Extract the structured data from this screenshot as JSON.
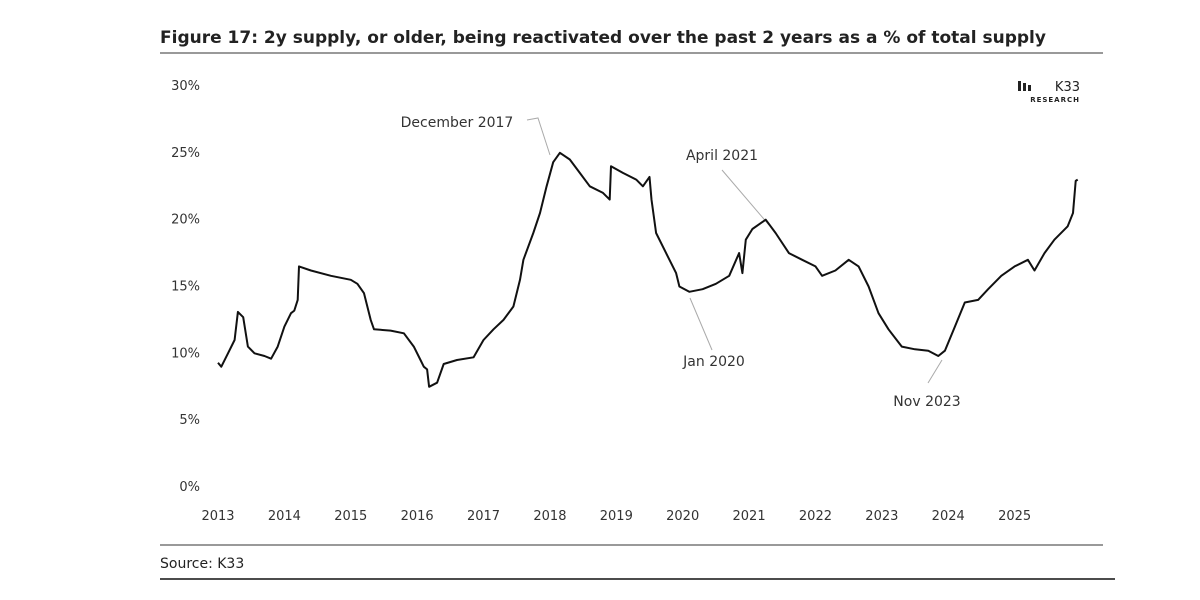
{
  "chart_data": {
    "type": "line",
    "title": "Figure 17: 2y supply, or older, being reactivated over the past 2 years as a % of total supply",
    "source": "Source: K33",
    "logo": {
      "name": "K33",
      "sub": "RESEARCH"
    },
    "annotations": [
      "December 2017",
      "April 2021",
      "Jan 2020",
      "Nov 2023"
    ],
    "xlim": [
      2013,
      2026
    ],
    "xticks": [
      2013,
      2014,
      2015,
      2016,
      2017,
      2018,
      2019,
      2020,
      2021,
      2022,
      2023,
      2024,
      2025
    ],
    "ylim": [
      0,
      30
    ],
    "yticks": [
      {
        "value": 0,
        "label": "0%"
      },
      {
        "value": 5,
        "label": "5%"
      },
      {
        "value": 10,
        "label": "10%"
      },
      {
        "value": 15,
        "label": "15%"
      },
      {
        "value": 20,
        "label": "20%"
      },
      {
        "value": 25,
        "label": "25%"
      },
      {
        "value": 30,
        "label": "30%"
      }
    ],
    "grid": false,
    "series": [
      {
        "color": "#111111",
        "x": [
          2013.0,
          2013.05,
          2013.15,
          2013.25,
          2013.3,
          2013.38,
          2013.45,
          2013.55,
          2013.7,
          2013.8,
          2013.9,
          2014.0,
          2014.1,
          2014.15,
          2014.2,
          2014.22,
          2014.4,
          2014.7,
          2015.0,
          2015.1,
          2015.2,
          2015.3,
          2015.35,
          2015.6,
          2015.8,
          2015.95,
          2016.05,
          2016.1,
          2016.15,
          2016.18,
          2016.3,
          2016.4,
          2016.6,
          2016.85,
          2017.0,
          2017.15,
          2017.3,
          2017.45,
          2017.55,
          2017.6,
          2017.75,
          2017.85,
          2017.95,
          2018.05,
          2018.15,
          2018.3,
          2018.45,
          2018.6,
          2018.8,
          2018.9,
          2018.92,
          2019.1,
          2019.3,
          2019.4,
          2019.5,
          2019.53,
          2019.6,
          2019.75,
          2019.9,
          2019.95,
          2020.1,
          2020.3,
          2020.5,
          2020.7,
          2020.85,
          2020.9,
          2020.95,
          2021.05,
          2021.25,
          2021.4,
          2021.6,
          2021.8,
          2022.0,
          2022.1,
          2022.3,
          2022.5,
          2022.65,
          2022.8,
          2022.95,
          2023.1,
          2023.3,
          2023.5,
          2023.7,
          2023.85,
          2023.95,
          2024.1,
          2024.25,
          2024.45,
          2024.6,
          2024.8,
          2025.0,
          2025.2,
          2025.3,
          2025.45,
          2025.6,
          2025.8,
          2025.88,
          2025.92,
          2025.95
        ],
        "values": [
          9.3,
          9.0,
          10,
          11,
          13.1,
          12.7,
          10.5,
          10.0,
          9.8,
          9.6,
          10.5,
          12,
          13,
          13.2,
          14,
          16.5,
          16.2,
          15.8,
          15.5,
          15.2,
          14.5,
          12.5,
          11.8,
          11.7,
          11.5,
          10.5,
          9.5,
          9.0,
          8.8,
          7.5,
          7.8,
          9.2,
          9.5,
          9.7,
          11,
          11.8,
          12.5,
          13.5,
          15.5,
          17,
          19,
          20.5,
          22.5,
          24.3,
          25.0,
          24.5,
          23.5,
          22.5,
          22.0,
          21.5,
          24,
          23.5,
          23.0,
          22.5,
          23.2,
          21.5,
          19,
          17.5,
          16,
          15,
          14.6,
          14.8,
          15.2,
          15.8,
          17.5,
          16.0,
          18.5,
          19.3,
          20.0,
          19.0,
          17.5,
          17.0,
          16.5,
          15.8,
          16.2,
          17.0,
          16.5,
          15.0,
          13.0,
          11.8,
          10.5,
          10.3,
          10.2,
          9.8,
          10.2,
          12,
          13.8,
          14.0,
          14.8,
          15.8,
          16.5,
          17.0,
          16.2,
          17.5,
          18.5,
          19.5,
          20.5,
          22.9,
          23.0
        ]
      }
    ]
  }
}
